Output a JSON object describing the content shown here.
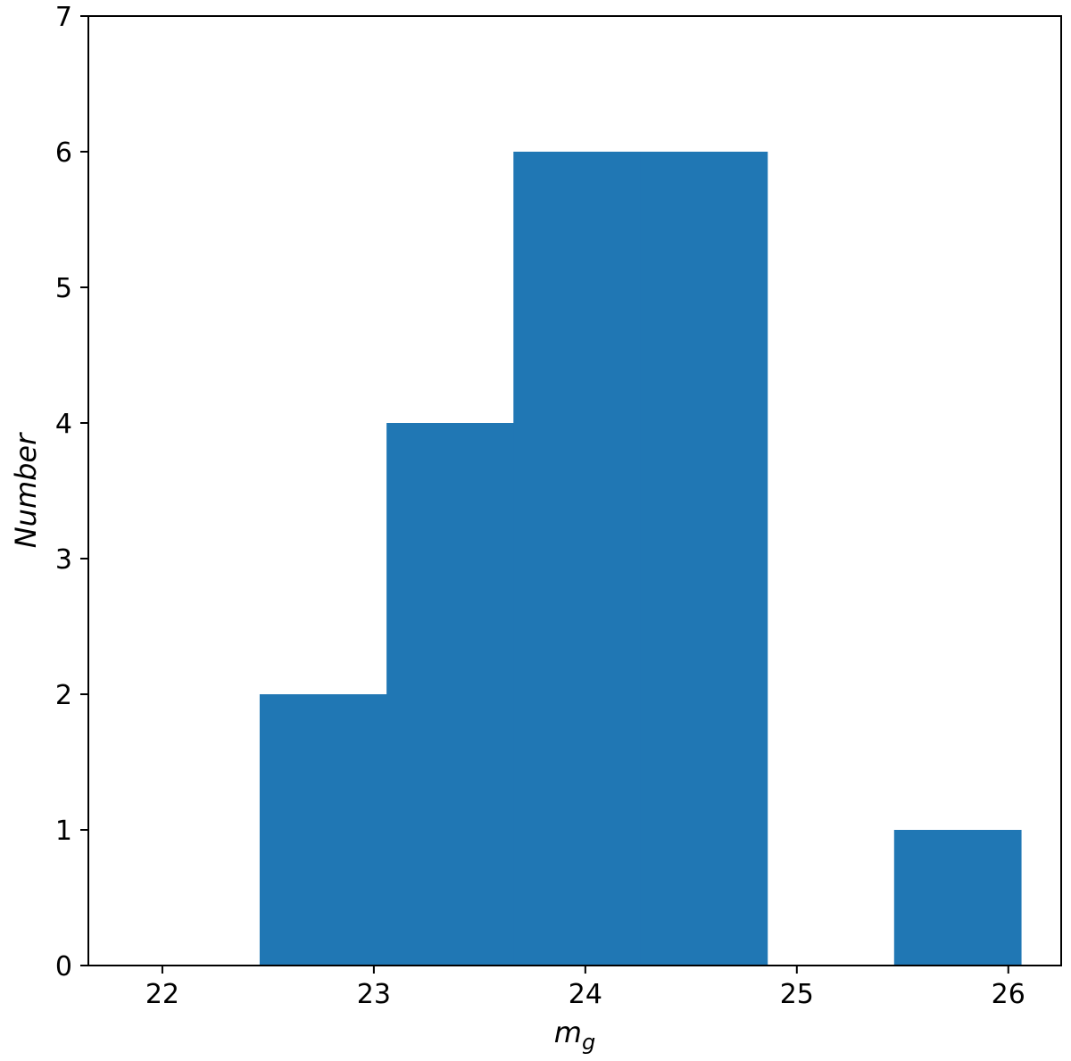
{
  "chart_data": {
    "type": "bar",
    "title": "",
    "xlabel": "m",
    "xlabel_subscript": "g",
    "ylabel": "Number",
    "xlim": [
      21.65,
      26.25
    ],
    "ylim": [
      0,
      7
    ],
    "x_ticks": [
      22,
      23,
      24,
      25,
      26
    ],
    "y_ticks": [
      0,
      1,
      2,
      3,
      4,
      5,
      6,
      7
    ],
    "bins": [
      {
        "x0": 22.46,
        "x1": 23.06,
        "value": 2
      },
      {
        "x0": 23.06,
        "x1": 23.66,
        "value": 4
      },
      {
        "x0": 23.66,
        "x1": 24.26,
        "value": 6
      },
      {
        "x0": 24.26,
        "x1": 24.86,
        "value": 6
      },
      {
        "x0": 24.86,
        "x1": 25.46,
        "value": 0
      },
      {
        "x0": 25.46,
        "x1": 26.06,
        "value": 1
      }
    ],
    "bar_color": "#2077b4",
    "grid": false,
    "legend": null
  }
}
